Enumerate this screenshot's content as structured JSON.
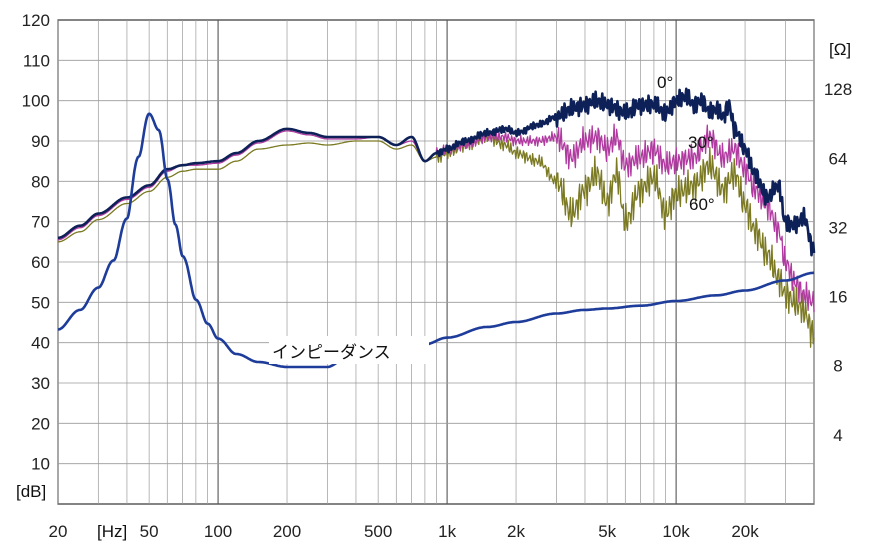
{
  "chart_data": {
    "type": "line",
    "xscale": "log",
    "xlim": [
      20,
      40000
    ],
    "ylim": [
      0,
      120
    ],
    "y2scale": "log",
    "y2lim": [
      2,
      256
    ],
    "grid": true,
    "xunit": "[Hz]",
    "yunit": "[dB]",
    "y2unit": "[Ω]",
    "x_ticks": [
      20,
      50,
      100,
      200,
      500,
      1000,
      2000,
      5000,
      10000,
      20000
    ],
    "x_tick_labels": [
      "20",
      "50",
      "100",
      "200",
      "500",
      "1k",
      "2k",
      "5k",
      "10k",
      "20k"
    ],
    "y_ticks": [
      10,
      20,
      30,
      40,
      50,
      60,
      70,
      80,
      90,
      100,
      110,
      120
    ],
    "y_tick_labels": [
      "10",
      "20",
      "30",
      "40",
      "50",
      "60",
      "70",
      "80",
      "90",
      "100",
      "110",
      "120"
    ],
    "y2_ticks": [
      4,
      8,
      16,
      32,
      64,
      128
    ],
    "y2_tick_labels": [
      "4",
      "8",
      "16",
      "32",
      "64",
      "128"
    ],
    "series": [
      {
        "name": "0°",
        "color": "#0d2057",
        "axis": "left",
        "x": [
          20,
          25,
          30,
          40,
          50,
          60,
          70,
          80,
          100,
          120,
          150,
          200,
          250,
          300,
          400,
          500,
          600,
          700,
          800,
          900,
          1000,
          1200,
          1500,
          1800,
          2000,
          2500,
          3000,
          3500,
          4000,
          4500,
          5000,
          6000,
          7000,
          8000,
          9000,
          10000,
          11000,
          12000,
          13000,
          14000,
          15000,
          16000,
          17000,
          18000,
          20000,
          22000,
          25000,
          28000,
          30000,
          33000,
          36000,
          40000
        ],
        "values": [
          66,
          69,
          72,
          76,
          79,
          83,
          84,
          84.5,
          85,
          87,
          90,
          93,
          92,
          91,
          91,
          91,
          89,
          91,
          85,
          87,
          88,
          90,
          92,
          93,
          92,
          94,
          96,
          98,
          99,
          100,
          99,
          97,
          99,
          99,
          97,
          100,
          101,
          99,
          100,
          97,
          98,
          96,
          99,
          93,
          88,
          82,
          76,
          79,
          70,
          69,
          71,
          63
        ]
      },
      {
        "name": "30°",
        "color": "#b03aa0",
        "axis": "left",
        "x": [
          20,
          25,
          30,
          40,
          50,
          60,
          70,
          80,
          100,
          120,
          150,
          200,
          250,
          300,
          400,
          500,
          600,
          700,
          800,
          900,
          1000,
          1200,
          1500,
          1800,
          2000,
          2500,
          3000,
          3500,
          4000,
          4500,
          5000,
          5500,
          6000,
          7000,
          8000,
          9000,
          10000,
          12000,
          14000,
          16000,
          18000,
          20000,
          22000,
          25000,
          28000,
          30000,
          33000,
          36000,
          40000
        ],
        "values": [
          65.5,
          68.5,
          71.5,
          75.5,
          78.5,
          82.5,
          84,
          84,
          84.5,
          86.5,
          89.5,
          92.5,
          91.5,
          90.5,
          90.5,
          91,
          89,
          90,
          85,
          87,
          88,
          89,
          91,
          91,
          90,
          90,
          91,
          86,
          90,
          91,
          88,
          91,
          84,
          86,
          88,
          84,
          85,
          86,
          91,
          86,
          88,
          83,
          78,
          74,
          68,
          60,
          55,
          52,
          50
        ]
      },
      {
        "name": "60°",
        "color": "#7b7a22",
        "axis": "left",
        "x": [
          20,
          25,
          30,
          40,
          50,
          60,
          70,
          80,
          100,
          120,
          150,
          200,
          250,
          300,
          400,
          500,
          600,
          700,
          800,
          900,
          1000,
          1200,
          1500,
          1800,
          2000,
          2500,
          3000,
          3500,
          4000,
          4500,
          5000,
          5500,
          6000,
          7000,
          8000,
          9000,
          10000,
          12000,
          14000,
          16000,
          18000,
          20000,
          22000,
          25000,
          28000,
          30000,
          33000,
          36000,
          40000
        ],
        "values": [
          65,
          67.5,
          70.5,
          74.5,
          77.5,
          81,
          82.5,
          83,
          83,
          85,
          88,
          89,
          89.5,
          89,
          90,
          90,
          88,
          89,
          85,
          86,
          87,
          89,
          91,
          89,
          87,
          85,
          80,
          72,
          78,
          82,
          75,
          82,
          70,
          78,
          81,
          72,
          77,
          79,
          84,
          78,
          82,
          74,
          68,
          62,
          56,
          52,
          50,
          48,
          42
        ]
      },
      {
        "name": "インピーダンス",
        "color": "#1e3c9a",
        "axis": "right",
        "x": [
          20,
          25,
          30,
          35,
          40,
          45,
          50,
          55,
          60,
          65,
          70,
          80,
          90,
          100,
          120,
          150,
          200,
          250,
          300,
          350,
          400,
          450,
          500,
          600,
          700,
          800,
          1000,
          1500,
          2000,
          3000,
          4000,
          5000,
          7000,
          10000,
          15000,
          20000,
          30000,
          40000
        ],
        "values": [
          11.5,
          14,
          17.5,
          23,
          35,
          65,
          100,
          85,
          52,
          33,
          24,
          15.5,
          12.2,
          10.5,
          9.0,
          8.3,
          7.9,
          7.9,
          7.9,
          8.4,
          8.3,
          8.4,
          8.7,
          9.5,
          9.8,
          9.9,
          10.6,
          11.8,
          12.4,
          13.5,
          14.0,
          14.2,
          14.6,
          15.3,
          16.2,
          17.0,
          18.8,
          20.3
        ]
      }
    ],
    "annotations": [
      {
        "text": "0°",
        "series": "0°"
      },
      {
        "text": "30°",
        "series": "30°"
      },
      {
        "text": "60°",
        "series": "60°"
      },
      {
        "text": "インピーダンス",
        "series": "インピーダンス"
      }
    ]
  }
}
